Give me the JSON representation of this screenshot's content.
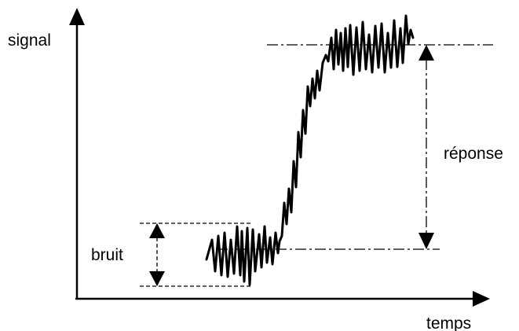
{
  "labels": {
    "y_axis": "signal",
    "x_axis": "temps",
    "response": "réponse",
    "noise": "bruit"
  },
  "colors": {
    "ink": "#000000",
    "background": "#ffffff"
  }
}
